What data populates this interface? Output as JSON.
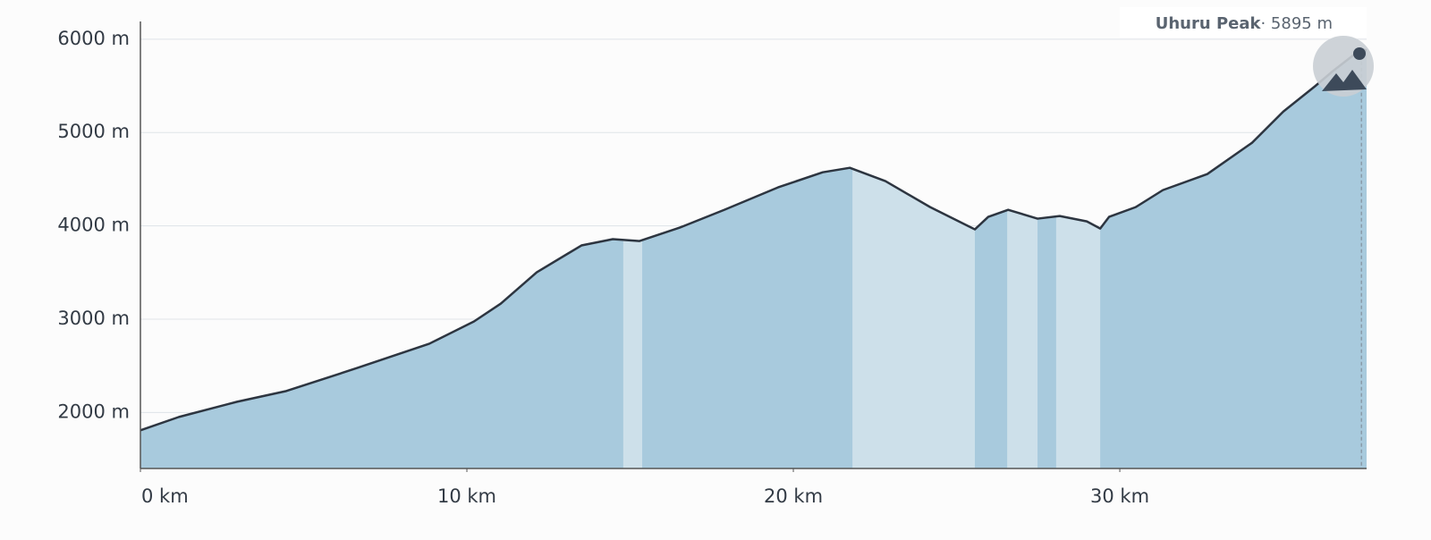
{
  "chart_data": {
    "type": "area",
    "x": [
      0,
      1.18,
      2.96,
      4.47,
      6.66,
      8.85,
      10.22,
      11.04,
      12.14,
      13.51,
      14.47,
      15.29,
      16.52,
      17.89,
      19.53,
      20.9,
      21.73,
      22.82,
      24.19,
      25.56,
      25.97,
      26.58,
      27.48,
      28.16,
      28.99,
      29.4,
      29.67,
      30.49,
      31.32,
      32.68,
      34.05,
      35.01,
      35.97,
      36.52,
      37.4,
      37.56
    ],
    "values": [
      1809,
      1952,
      2115,
      2230,
      2479,
      2737,
      2976,
      3167,
      3502,
      3790,
      3857,
      3837,
      3981,
      4172,
      4412,
      4574,
      4622,
      4479,
      4201,
      3962,
      4096,
      4172,
      4077,
      4105,
      4048,
      3971,
      4096,
      4201,
      4383,
      4555,
      4890,
      5225,
      5493,
      5656,
      5895,
      5880
    ],
    "color": "#a8cadd",
    "line_color": "#2d3540",
    "highlights": [
      [
        14.79,
        15.37
      ],
      [
        21.81,
        25.56
      ],
      [
        26.55,
        27.48
      ],
      [
        28.05,
        29.4
      ]
    ],
    "highlight_color": "#cde0ea",
    "xlim": [
      0,
      37.56
    ],
    "ylim": [
      1400,
      6190
    ],
    "xticks": [
      {
        "value": 0,
        "label": "0 km"
      },
      {
        "value": 10,
        "label": "10 km"
      },
      {
        "value": 20,
        "label": "20 km"
      },
      {
        "value": 30,
        "label": "30 km"
      }
    ],
    "yticks": [
      {
        "value": 2000,
        "label": "2000 m"
      },
      {
        "value": 3000,
        "label": "3000 m"
      },
      {
        "value": 4000,
        "label": "4000 m"
      },
      {
        "value": 5000,
        "label": "5000 m"
      },
      {
        "value": 6000,
        "label": "6000 m"
      }
    ],
    "grid": true,
    "annotation": {
      "text": "Uhuru Peak",
      "x": 37.4,
      "y": 5895,
      "label": "· 5895 m"
    }
  }
}
